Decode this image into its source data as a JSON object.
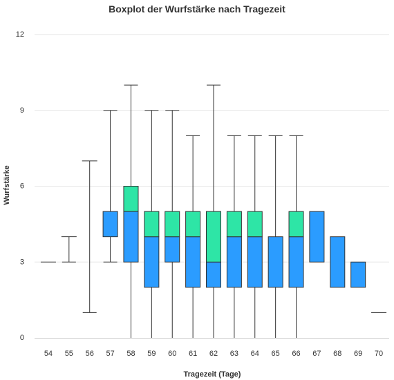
{
  "chart_data": {
    "type": "boxplot",
    "title": "Boxplot der Wurfstärke nach Tragezeit",
    "xlabel": "Tragezeit (Tage)",
    "ylabel": "Wurfstärke",
    "ylim": [
      0,
      12
    ],
    "yticks": [
      0,
      3,
      6,
      9,
      12
    ],
    "grid": true,
    "colors": {
      "lower_box": "#2b9cff",
      "upper_box": "#2ee5a6",
      "whisker": "#333333",
      "grid": "#e6e6e6"
    },
    "categories": [
      "54",
      "55",
      "56",
      "57",
      "58",
      "59",
      "60",
      "61",
      "62",
      "63",
      "64",
      "65",
      "66",
      "67",
      "68",
      "69",
      "70"
    ],
    "boxes": [
      {
        "x": "54",
        "min": 3,
        "q1": 3,
        "median": 3,
        "q3": 3,
        "max": 3
      },
      {
        "x": "55",
        "min": 3,
        "q1": 4,
        "median": 4,
        "q3": 4,
        "max": 4
      },
      {
        "x": "56",
        "min": 1,
        "q1": 7,
        "median": 7,
        "q3": 7,
        "max": 7
      },
      {
        "x": "57",
        "min": 3,
        "q1": 4,
        "median": 5,
        "q3": 5,
        "max": 9
      },
      {
        "x": "58",
        "min": 0,
        "q1": 3,
        "median": 5,
        "q3": 6,
        "max": 10
      },
      {
        "x": "59",
        "min": 0,
        "q1": 2,
        "median": 4,
        "q3": 5,
        "max": 9
      },
      {
        "x": "60",
        "min": 0,
        "q1": 3,
        "median": 4,
        "q3": 5,
        "max": 9
      },
      {
        "x": "61",
        "min": 0,
        "q1": 2,
        "median": 4,
        "q3": 5,
        "max": 8
      },
      {
        "x": "62",
        "min": 0,
        "q1": 2,
        "median": 3,
        "q3": 5,
        "max": 10
      },
      {
        "x": "63",
        "min": 0,
        "q1": 2,
        "median": 4,
        "q3": 5,
        "max": 8
      },
      {
        "x": "64",
        "min": 0,
        "q1": 2,
        "median": 4,
        "q3": 5,
        "max": 8
      },
      {
        "x": "65",
        "min": 0,
        "q1": 2,
        "median": 4,
        "q3": 4,
        "max": 8
      },
      {
        "x": "66",
        "min": 0,
        "q1": 2,
        "median": 4,
        "q3": 5,
        "max": 8
      },
      {
        "x": "67",
        "min": 3,
        "q1": 3,
        "median": 5,
        "q3": 5,
        "max": 5
      },
      {
        "x": "68",
        "min": 2,
        "q1": 2,
        "median": 4,
        "q3": 4,
        "max": 4
      },
      {
        "x": "69",
        "min": 2,
        "q1": 2,
        "median": 3,
        "q3": 3,
        "max": 3
      },
      {
        "x": "70",
        "min": 1,
        "q1": 1,
        "median": 1,
        "q3": 1,
        "max": 1
      }
    ]
  }
}
